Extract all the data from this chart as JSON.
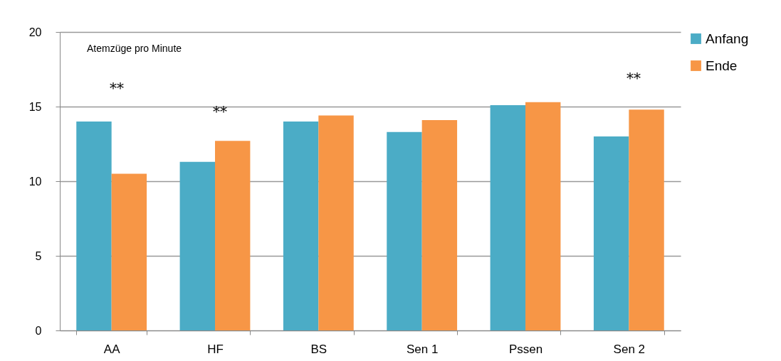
{
  "chart_data": {
    "type": "bar",
    "categories": [
      "AA",
      "HF",
      "BS",
      "Sen 1",
      "Pssen",
      "Sen 2"
    ],
    "series": [
      {
        "name": "Anfang",
        "color": "#4bacc6",
        "values": [
          14.0,
          11.3,
          14.0,
          13.3,
          15.1,
          13.0
        ]
      },
      {
        "name": "Ende",
        "color": "#f79646",
        "values": [
          10.5,
          12.7,
          14.4,
          14.1,
          15.3,
          14.8
        ]
      }
    ],
    "ylim": [
      0,
      20
    ],
    "yticks": [
      0,
      5,
      10,
      15,
      20
    ],
    "grid": "y",
    "legend": "right",
    "annotations": [
      "Atemzüge pro Minute",
      "**",
      "**",
      "**"
    ]
  }
}
